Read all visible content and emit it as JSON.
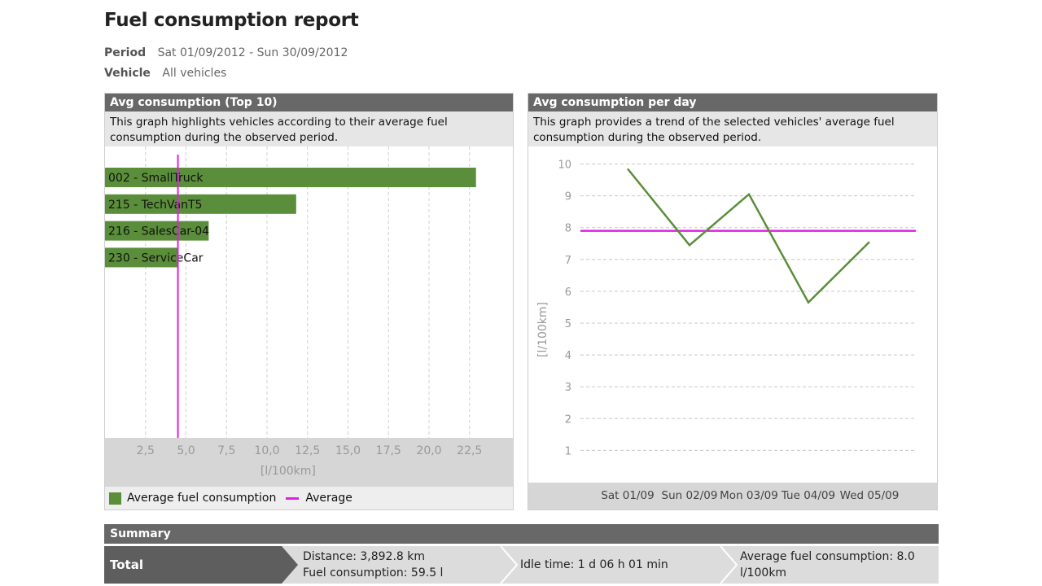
{
  "report": {
    "title": "Fuel consumption report",
    "period_label": "Period",
    "period_value": "Sat 01/09/2012 - Sun 30/09/2012",
    "vehicle_label": "Vehicle",
    "vehicle_value": "All vehicles"
  },
  "left_panel": {
    "title": "Avg consumption (Top 10)",
    "description": "This graph highlights vehicles according to their average fuel consumption during the observed period.",
    "legend": {
      "series": "Average fuel consumption",
      "average": "Average"
    }
  },
  "right_panel": {
    "title": "Avg consumption per day",
    "description": "This graph provides a trend of the selected vehicles' average fuel consumption during the observed period."
  },
  "summary": {
    "title": "Summary",
    "total_label": "Total",
    "distance": "Distance: 3,892.8 km",
    "fuel": "Fuel consumption: 59.5 l",
    "idle": "Idle time: 1 d 06 h 01 min",
    "avg_line1": "Average fuel consumption: 8.0",
    "avg_line2": "l/100km"
  },
  "colors": {
    "bar": "#5a8e3a",
    "average": "#e020e0",
    "header": "#686868",
    "total": "#5e5e5e"
  },
  "chart_data": [
    {
      "type": "bar",
      "orientation": "horizontal",
      "categories": [
        "002 - SmallTruck",
        "215 - TechVanT5",
        "216 - SalesCar-04",
        "230 - ServiceCar"
      ],
      "values": [
        22.9,
        11.8,
        6.4,
        4.5
      ],
      "average": 4.5,
      "xlabel": "[l/100km]",
      "xlim": [
        0,
        25
      ],
      "xticks": [
        2.5,
        5.0,
        7.5,
        10.0,
        12.5,
        15.0,
        17.5,
        20.0,
        22.5
      ],
      "xtick_labels": [
        "2,5",
        "5,0",
        "7,5",
        "10,0",
        "12,5",
        "15,0",
        "17,5",
        "20,0",
        "22,5"
      ],
      "series": [
        {
          "name": "Average fuel consumption",
          "values": [
            22.9,
            11.8,
            6.4,
            4.5
          ]
        }
      ],
      "reference_lines": [
        {
          "name": "Average",
          "value": 4.5
        }
      ],
      "grid": true,
      "legend": "bottom-left"
    },
    {
      "type": "line",
      "categories": [
        "Sat 01/09",
        "Sun 02/09",
        "Mon 03/09",
        "Tue 04/09",
        "Wed 05/09"
      ],
      "values": [
        9.85,
        7.45,
        9.05,
        5.65,
        7.55
      ],
      "average": 7.9,
      "ylabel": "[l/100km]",
      "ylim": [
        0,
        10
      ],
      "yticks": [
        1,
        2,
        3,
        4,
        5,
        6,
        7,
        8,
        9,
        10
      ],
      "grid": true
    }
  ]
}
